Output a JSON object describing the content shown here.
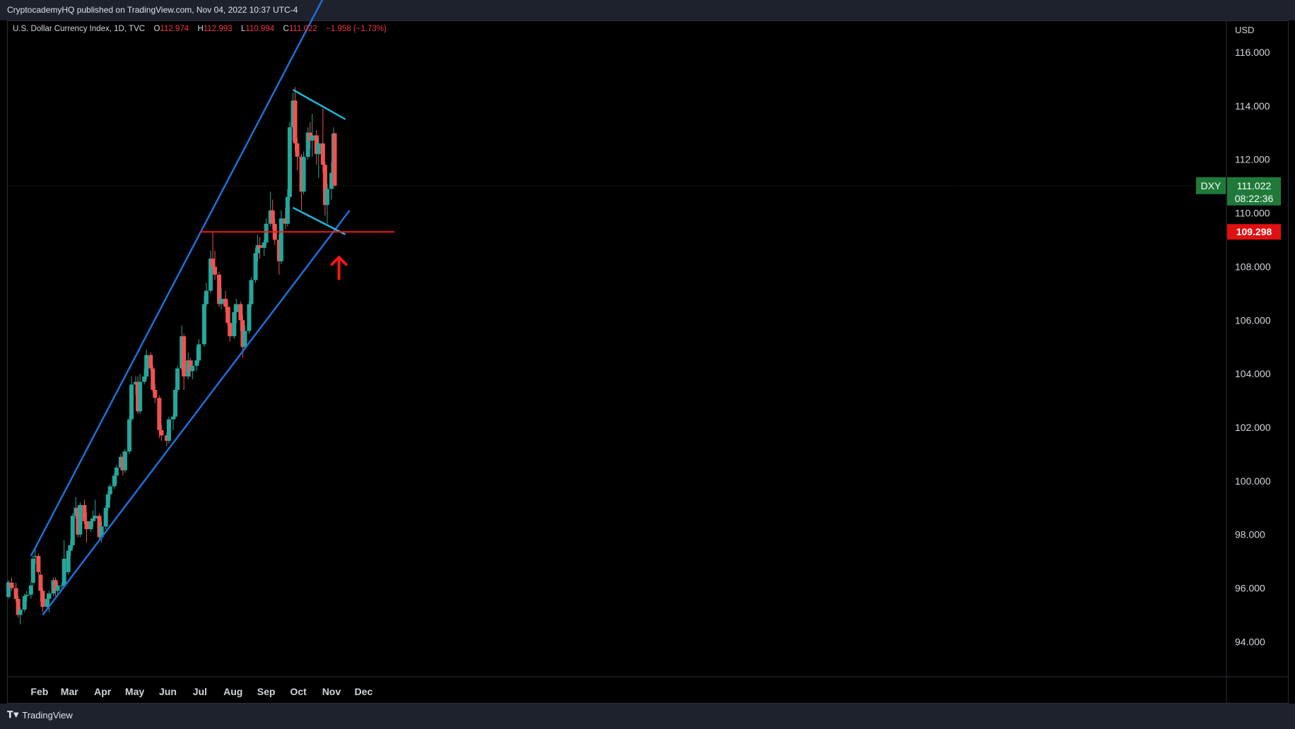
{
  "header": {
    "publisher_line": "CryptocademyHQ published on TradingView.com, Nov 04, 2022 10:37 UTC-4"
  },
  "legend": {
    "instrument": "U.S. Dollar Currency Index, 1D, TVC",
    "o_label": "O",
    "o_value": "112.974",
    "h_label": "H",
    "h_value": "112.993",
    "l_label": "L",
    "l_value": "110.994",
    "c_label": "C",
    "c_value": "111.022",
    "change": "−1.958 (−1.73%)"
  },
  "price_axis": {
    "currency": "USD",
    "ticks": [
      "116.000",
      "114.000",
      "112.000",
      "110.000",
      "108.000",
      "106.000",
      "104.000",
      "102.000",
      "100.000",
      "98.000",
      "96.000",
      "94.000"
    ]
  },
  "time_axis": {
    "labels": [
      "Feb",
      "Mar",
      "Apr",
      "May",
      "Jun",
      "Jul",
      "Aug",
      "Sep",
      "Oct",
      "Nov",
      "Dec"
    ]
  },
  "price_badges": {
    "symbol": "DXY",
    "last_price": "111.022",
    "countdown": "08:22:36",
    "level_price": "109.298"
  },
  "footer": {
    "brand": "TradingView"
  },
  "colors": {
    "background": "#000000",
    "up_candle": "#26a69a",
    "down_candle": "#ef5350",
    "channel_lines": "#1e6fd9",
    "flag_lines": "#22b6d8",
    "level_line": "#f01818",
    "last_price_badge": "#1f7a3a",
    "level_badge": "#e01010"
  },
  "chart_data": {
    "type": "candlestick",
    "title": "U.S. Dollar Currency Index, 1D, TVC",
    "ylabel": "USD",
    "ylim": [
      92.7,
      117.8
    ],
    "date_range": [
      "2022-01-03",
      "2022-11-04"
    ],
    "candles": [
      {
        "date": "2022-01-03",
        "open": 95.67,
        "high": 96.3,
        "low": 95.6,
        "close": 96.22
      },
      {
        "date": "2022-01-06",
        "open": 96.2,
        "high": 96.4,
        "low": 95.9,
        "close": 96.0
      },
      {
        "date": "2022-01-10",
        "open": 96.0,
        "high": 96.2,
        "low": 95.5,
        "close": 95.6
      },
      {
        "date": "2022-01-12",
        "open": 95.6,
        "high": 95.7,
        "low": 94.9,
        "close": 95.0
      },
      {
        "date": "2022-01-14",
        "open": 95.0,
        "high": 95.3,
        "low": 94.65,
        "close": 95.2
      },
      {
        "date": "2022-01-18",
        "open": 95.2,
        "high": 95.8,
        "low": 95.1,
        "close": 95.7
      },
      {
        "date": "2022-01-20",
        "open": 95.7,
        "high": 95.9,
        "low": 95.5,
        "close": 95.75
      },
      {
        "date": "2022-01-24",
        "open": 95.75,
        "high": 96.2,
        "low": 95.6,
        "close": 96.1
      },
      {
        "date": "2022-01-26",
        "open": 96.2,
        "high": 97.2,
        "low": 96.1,
        "close": 97.1
      },
      {
        "date": "2022-01-28",
        "open": 97.2,
        "high": 97.45,
        "low": 96.9,
        "close": 97.2
      },
      {
        "date": "2022-01-31",
        "open": 97.2,
        "high": 97.3,
        "low": 96.5,
        "close": 96.6
      },
      {
        "date": "2022-02-02",
        "open": 96.5,
        "high": 96.6,
        "low": 95.5,
        "close": 95.9
      },
      {
        "date": "2022-02-04",
        "open": 95.9,
        "high": 96.0,
        "low": 95.1,
        "close": 95.3
      },
      {
        "date": "2022-02-08",
        "open": 95.3,
        "high": 95.8,
        "low": 95.2,
        "close": 95.6
      },
      {
        "date": "2022-02-10",
        "open": 95.6,
        "high": 95.9,
        "low": 95.1,
        "close": 95.8
      },
      {
        "date": "2022-02-14",
        "open": 95.8,
        "high": 96.4,
        "low": 95.7,
        "close": 96.3
      },
      {
        "date": "2022-02-16",
        "open": 96.3,
        "high": 96.4,
        "low": 95.7,
        "close": 95.9
      },
      {
        "date": "2022-02-18",
        "open": 95.9,
        "high": 96.2,
        "low": 95.8,
        "close": 96.1
      },
      {
        "date": "2022-02-22",
        "open": 96.1,
        "high": 96.2,
        "low": 95.9,
        "close": 96.1
      },
      {
        "date": "2022-02-24",
        "open": 96.1,
        "high": 97.8,
        "low": 96.0,
        "close": 97.1
      },
      {
        "date": "2022-02-28",
        "open": 96.6,
        "high": 97.6,
        "low": 96.5,
        "close": 97.4
      },
      {
        "date": "2022-03-02",
        "open": 97.4,
        "high": 97.8,
        "low": 97.2,
        "close": 97.6
      },
      {
        "date": "2022-03-04",
        "open": 97.6,
        "high": 98.8,
        "low": 97.5,
        "close": 98.7
      },
      {
        "date": "2022-03-07",
        "open": 98.7,
        "high": 99.4,
        "low": 98.6,
        "close": 99.0
      },
      {
        "date": "2022-03-09",
        "open": 99.0,
        "high": 99.1,
        "low": 97.9,
        "close": 98.0
      },
      {
        "date": "2022-03-11",
        "open": 98.0,
        "high": 99.2,
        "low": 97.9,
        "close": 99.1
      },
      {
        "date": "2022-03-15",
        "open": 99.1,
        "high": 99.3,
        "low": 98.4,
        "close": 98.5
      },
      {
        "date": "2022-03-17",
        "open": 98.5,
        "high": 98.8,
        "low": 97.7,
        "close": 98.2
      },
      {
        "date": "2022-03-21",
        "open": 98.2,
        "high": 98.6,
        "low": 98.1,
        "close": 98.5
      },
      {
        "date": "2022-03-23",
        "open": 98.5,
        "high": 98.9,
        "low": 98.3,
        "close": 98.6
      },
      {
        "date": "2022-03-25",
        "open": 98.6,
        "high": 99.3,
        "low": 98.5,
        "close": 98.7
      },
      {
        "date": "2022-03-29",
        "open": 98.7,
        "high": 98.8,
        "low": 97.8,
        "close": 97.9
      },
      {
        "date": "2022-03-31",
        "open": 97.9,
        "high": 98.5,
        "low": 97.7,
        "close": 98.3
      },
      {
        "date": "2022-04-04",
        "open": 98.3,
        "high": 99.1,
        "low": 98.2,
        "close": 99.0
      },
      {
        "date": "2022-04-06",
        "open": 99.0,
        "high": 99.6,
        "low": 98.9,
        "close": 99.5
      },
      {
        "date": "2022-04-08",
        "open": 99.5,
        "high": 99.9,
        "low": 99.3,
        "close": 99.8
      },
      {
        "date": "2022-04-12",
        "open": 99.8,
        "high": 100.3,
        "low": 99.7,
        "close": 100.2
      },
      {
        "date": "2022-04-14",
        "open": 100.2,
        "high": 100.6,
        "low": 99.9,
        "close": 100.5
      },
      {
        "date": "2022-04-18",
        "open": 100.5,
        "high": 101.0,
        "low": 100.4,
        "close": 100.9
      },
      {
        "date": "2022-04-20",
        "open": 100.9,
        "high": 101.1,
        "low": 100.2,
        "close": 100.4
      },
      {
        "date": "2022-04-22",
        "open": 100.4,
        "high": 101.2,
        "low": 100.3,
        "close": 101.1
      },
      {
        "date": "2022-04-26",
        "open": 101.1,
        "high": 102.4,
        "low": 101.0,
        "close": 102.3
      },
      {
        "date": "2022-04-28",
        "open": 102.3,
        "high": 103.9,
        "low": 102.2,
        "close": 103.6
      },
      {
        "date": "2022-05-02",
        "open": 103.6,
        "high": 103.9,
        "low": 103.2,
        "close": 103.7
      },
      {
        "date": "2022-05-04",
        "open": 103.7,
        "high": 103.9,
        "low": 102.5,
        "close": 102.6
      },
      {
        "date": "2022-05-06",
        "open": 102.6,
        "high": 104.0,
        "low": 102.5,
        "close": 103.7
      },
      {
        "date": "2022-05-10",
        "open": 103.7,
        "high": 104.2,
        "low": 103.6,
        "close": 103.9
      },
      {
        "date": "2022-05-12",
        "open": 103.9,
        "high": 104.9,
        "low": 103.8,
        "close": 104.7
      },
      {
        "date": "2022-05-16",
        "open": 104.7,
        "high": 104.8,
        "low": 104.1,
        "close": 104.2
      },
      {
        "date": "2022-05-18",
        "open": 104.2,
        "high": 104.3,
        "low": 103.3,
        "close": 103.4
      },
      {
        "date": "2022-05-20",
        "open": 103.4,
        "high": 103.6,
        "low": 102.9,
        "close": 103.1
      },
      {
        "date": "2022-05-24",
        "open": 103.1,
        "high": 103.2,
        "low": 101.6,
        "close": 101.9
      },
      {
        "date": "2022-05-26",
        "open": 101.9,
        "high": 102.1,
        "low": 101.5,
        "close": 101.7
      },
      {
        "date": "2022-05-31",
        "open": 101.7,
        "high": 101.8,
        "low": 101.3,
        "close": 101.5
      },
      {
        "date": "2022-06-02",
        "open": 101.5,
        "high": 102.4,
        "low": 101.4,
        "close": 102.3
      },
      {
        "date": "2022-06-06",
        "open": 102.3,
        "high": 102.5,
        "low": 101.9,
        "close": 102.4
      },
      {
        "date": "2022-06-08",
        "open": 102.4,
        "high": 103.5,
        "low": 102.3,
        "close": 103.4
      },
      {
        "date": "2022-06-10",
        "open": 103.4,
        "high": 104.3,
        "low": 103.3,
        "close": 104.2
      },
      {
        "date": "2022-06-14",
        "open": 104.2,
        "high": 105.8,
        "low": 104.1,
        "close": 105.4
      },
      {
        "date": "2022-06-16",
        "open": 105.4,
        "high": 105.5,
        "low": 103.4,
        "close": 103.9
      },
      {
        "date": "2022-06-20",
        "open": 103.9,
        "high": 104.8,
        "low": 103.8,
        "close": 104.5
      },
      {
        "date": "2022-06-22",
        "open": 104.5,
        "high": 104.6,
        "low": 103.9,
        "close": 104.1
      },
      {
        "date": "2022-06-24",
        "open": 104.1,
        "high": 104.5,
        "low": 103.8,
        "close": 104.3
      },
      {
        "date": "2022-06-28",
        "open": 104.3,
        "high": 105.0,
        "low": 104.1,
        "close": 104.5
      },
      {
        "date": "2022-06-30",
        "open": 104.5,
        "high": 105.3,
        "low": 104.4,
        "close": 105.1
      },
      {
        "date": "2022-07-05",
        "open": 105.1,
        "high": 106.9,
        "low": 105.0,
        "close": 106.6
      },
      {
        "date": "2022-07-07",
        "open": 106.6,
        "high": 107.4,
        "low": 106.5,
        "close": 107.1
      },
      {
        "date": "2022-07-11",
        "open": 107.1,
        "high": 108.6,
        "low": 107.0,
        "close": 108.3
      },
      {
        "date": "2022-07-13",
        "open": 108.3,
        "high": 109.3,
        "low": 107.9,
        "close": 108.0
      },
      {
        "date": "2022-07-15",
        "open": 108.0,
        "high": 108.6,
        "low": 107.5,
        "close": 107.7
      },
      {
        "date": "2022-07-19",
        "open": 107.7,
        "high": 107.8,
        "low": 106.5,
        "close": 106.6
      },
      {
        "date": "2022-07-21",
        "open": 106.6,
        "high": 107.2,
        "low": 106.4,
        "close": 106.8
      },
      {
        "date": "2022-07-25",
        "open": 106.8,
        "high": 107.1,
        "low": 106.3,
        "close": 106.5
      },
      {
        "date": "2022-07-27",
        "open": 106.5,
        "high": 106.7,
        "low": 105.8,
        "close": 105.9
      },
      {
        "date": "2022-07-29",
        "open": 105.9,
        "high": 106.5,
        "low": 105.2,
        "close": 105.4
      },
      {
        "date": "2022-08-02",
        "open": 105.4,
        "high": 106.6,
        "low": 105.3,
        "close": 106.3
      },
      {
        "date": "2022-08-04",
        "open": 106.3,
        "high": 106.8,
        "low": 105.9,
        "close": 106.6
      },
      {
        "date": "2022-08-08",
        "open": 106.6,
        "high": 106.7,
        "low": 105.6,
        "close": 106.0
      },
      {
        "date": "2022-08-10",
        "open": 106.0,
        "high": 106.2,
        "low": 104.6,
        "close": 105.0
      },
      {
        "date": "2022-08-12",
        "open": 105.0,
        "high": 105.8,
        "low": 104.9,
        "close": 105.6
      },
      {
        "date": "2022-08-16",
        "open": 105.6,
        "high": 106.7,
        "low": 105.5,
        "close": 106.6
      },
      {
        "date": "2022-08-18",
        "open": 106.6,
        "high": 107.6,
        "low": 106.5,
        "close": 107.5
      },
      {
        "date": "2022-08-22",
        "open": 107.5,
        "high": 108.7,
        "low": 107.4,
        "close": 108.5
      },
      {
        "date": "2022-08-24",
        "open": 108.5,
        "high": 109.2,
        "low": 108.2,
        "close": 108.8
      },
      {
        "date": "2022-08-26",
        "open": 108.8,
        "high": 109.1,
        "low": 108.3,
        "close": 108.7
      },
      {
        "date": "2022-08-30",
        "open": 108.7,
        "high": 109.0,
        "low": 108.4,
        "close": 108.9
      },
      {
        "date": "2022-09-01",
        "open": 108.9,
        "high": 109.8,
        "low": 108.8,
        "close": 109.6
      },
      {
        "date": "2022-09-05",
        "open": 109.6,
        "high": 110.8,
        "low": 109.5,
        "close": 110.1
      },
      {
        "date": "2022-09-07",
        "open": 110.1,
        "high": 110.5,
        "low": 109.4,
        "close": 109.6
      },
      {
        "date": "2022-09-09",
        "open": 109.6,
        "high": 109.8,
        "low": 108.8,
        "close": 109.0
      },
      {
        "date": "2022-09-13",
        "open": 109.0,
        "high": 109.2,
        "low": 107.7,
        "close": 108.2
      },
      {
        "date": "2022-09-15",
        "open": 108.2,
        "high": 110.1,
        "low": 108.1,
        "close": 109.8
      },
      {
        "date": "2022-09-19",
        "open": 109.8,
        "high": 110.2,
        "low": 109.4,
        "close": 109.6
      },
      {
        "date": "2022-09-21",
        "open": 109.6,
        "high": 110.9,
        "low": 109.5,
        "close": 110.6
      },
      {
        "date": "2022-09-23",
        "open": 110.6,
        "high": 113.4,
        "low": 110.5,
        "close": 113.2
      },
      {
        "date": "2022-09-26",
        "open": 113.2,
        "high": 114.5,
        "low": 112.7,
        "close": 114.2
      },
      {
        "date": "2022-09-28",
        "open": 114.2,
        "high": 114.7,
        "low": 112.3,
        "close": 112.6
      },
      {
        "date": "2022-09-30",
        "open": 112.6,
        "high": 112.8,
        "low": 111.6,
        "close": 112.1
      },
      {
        "date": "2022-10-04",
        "open": 112.1,
        "high": 112.2,
        "low": 110.1,
        "close": 110.8
      },
      {
        "date": "2022-10-06",
        "open": 110.8,
        "high": 112.3,
        "low": 110.7,
        "close": 112.1
      },
      {
        "date": "2022-10-10",
        "open": 112.1,
        "high": 113.2,
        "low": 112.0,
        "close": 113.0
      },
      {
        "date": "2022-10-12",
        "open": 113.0,
        "high": 113.4,
        "low": 112.4,
        "close": 112.7
      },
      {
        "date": "2022-10-14",
        "open": 112.7,
        "high": 113.7,
        "low": 112.1,
        "close": 112.9
      },
      {
        "date": "2022-10-18",
        "open": 112.9,
        "high": 113.1,
        "low": 111.8,
        "close": 112.2
      },
      {
        "date": "2022-10-20",
        "open": 112.2,
        "high": 112.8,
        "low": 111.3,
        "close": 112.6
      },
      {
        "date": "2022-10-24",
        "open": 112.6,
        "high": 113.9,
        "low": 111.5,
        "close": 111.8
      },
      {
        "date": "2022-10-26",
        "open": 111.8,
        "high": 111.9,
        "low": 109.9,
        "close": 110.3
      },
      {
        "date": "2022-10-28",
        "open": 110.3,
        "high": 111.1,
        "low": 109.6,
        "close": 110.9
      },
      {
        "date": "2022-11-01",
        "open": 110.9,
        "high": 111.9,
        "low": 110.5,
        "close": 111.5
      },
      {
        "date": "2022-11-03",
        "open": 111.5,
        "high": 113.2,
        "low": 111.4,
        "close": 112.97
      },
      {
        "date": "2022-11-04",
        "open": 112.974,
        "high": 112.993,
        "low": 110.994,
        "close": 111.022
      }
    ],
    "drawings": [
      {
        "kind": "channel_upper",
        "color": "channel_lines",
        "from": {
          "date": "2022-01-24",
          "price": 97.2
        },
        "to": {
          "date": "2022-10-24",
          "price": 118.0
        }
      },
      {
        "kind": "channel_lower",
        "color": "channel_lines",
        "from": {
          "date": "2022-02-04",
          "price": 95.0
        },
        "to": {
          "date": "2022-11-18",
          "price": 110.1
        }
      },
      {
        "kind": "flag_upper",
        "color": "flag_lines",
        "from": {
          "date": "2022-09-26",
          "price": 114.6
        },
        "to": {
          "date": "2022-11-14",
          "price": 113.5
        }
      },
      {
        "kind": "flag_lower",
        "color": "flag_lines",
        "from": {
          "date": "2022-09-26",
          "price": 110.2
        },
        "to": {
          "date": "2022-11-14",
          "price": 109.2
        }
      },
      {
        "kind": "horizontal_level",
        "color": "level_line",
        "from": {
          "date": "2022-07-01",
          "price": 109.298
        },
        "to": {
          "date": "2022-12-30",
          "price": 109.298
        }
      },
      {
        "kind": "arrow_up",
        "color": "level_line",
        "at": {
          "date": "2022-11-08",
          "price": 108.4
        }
      }
    ],
    "last_price": 111.022,
    "level": 109.298,
    "grid": false
  }
}
